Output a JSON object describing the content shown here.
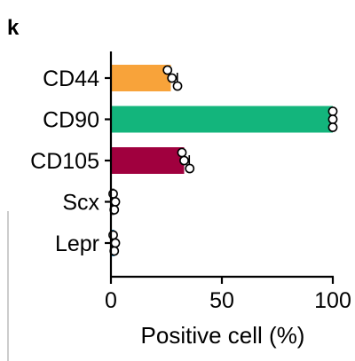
{
  "panel_label": "k",
  "chart_data": {
    "type": "bar",
    "orientation": "horizontal",
    "categories": [
      "CD44",
      "CD90",
      "CD105",
      "Scx",
      "Lepr"
    ],
    "values": [
      27,
      100,
      33,
      1.5,
      1.5
    ],
    "points": [
      [
        25.5,
        27.5,
        30
      ],
      [
        100,
        100,
        100
      ],
      [
        32,
        33,
        35.5
      ],
      [
        1,
        2,
        1.5
      ],
      [
        1,
        2,
        1.5
      ]
    ],
    "colors": [
      "#f8a33a",
      "#13b57c",
      "#a0003e",
      "#555555",
      "#2b8cbf"
    ],
    "xlabel": "Positive cell (%)",
    "xlim": [
      0,
      100
    ],
    "xticks": [
      0,
      50,
      100
    ],
    "xtick_labels": [
      "0",
      "50",
      "100"
    ],
    "grid": false,
    "legend": "none"
  }
}
